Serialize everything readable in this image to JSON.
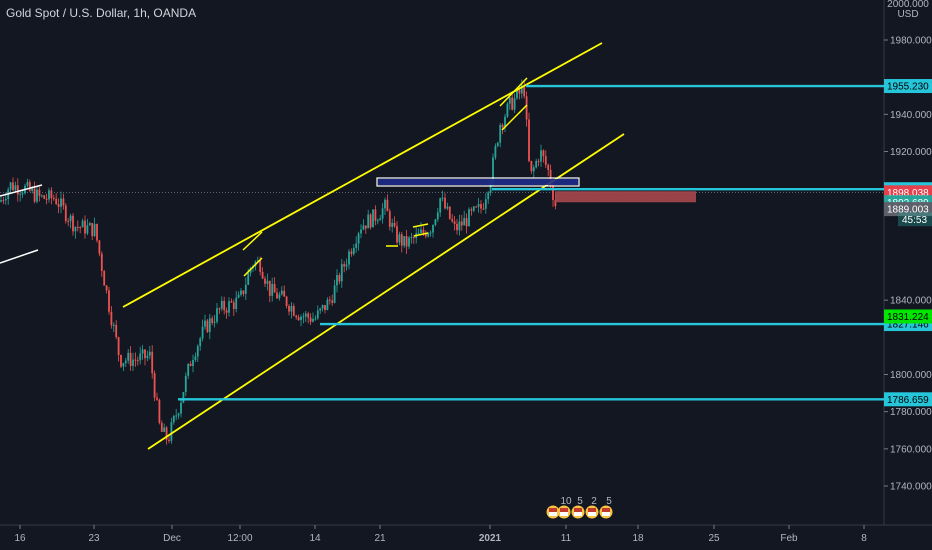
{
  "title": "Gold Spot / U.S. Dollar, 1h, OANDA",
  "chart_data": {
    "type": "candlestick",
    "title": "Gold Spot / U.S. Dollar, 1h, OANDA",
    "currency": "USD",
    "ylim": [
      1714,
      2000
    ],
    "y_ticks": [
      1740,
      1760,
      1780,
      1800,
      1840,
      1920,
      1940,
      1980
    ],
    "x_ticks": [
      "16",
      "23",
      "Dec",
      "12:00",
      "14",
      "21",
      "2021",
      "11",
      "18",
      "25",
      "Feb",
      "8"
    ],
    "price_levels": [
      {
        "value": 1955.23,
        "label": "1955.230",
        "color": "#26c6da"
      },
      {
        "value": 1899.705,
        "label": "1899.705",
        "color": "#26c6da"
      },
      {
        "value": 1827.146,
        "label": "1827.146",
        "color": "#26c6da"
      },
      {
        "value": 1786.659,
        "label": "1786.659",
        "color": "#26c6da"
      }
    ],
    "price_tags": [
      {
        "value": 1898.038,
        "label": "1898.038",
        "bg": "#e5404b",
        "fg": "#ffffff"
      },
      {
        "value": 1892.689,
        "label": "1892.689",
        "bg": "#26a69a",
        "fg": "#ffffff"
      },
      {
        "value": 1889.003,
        "label": "1889.003",
        "bg": "#5d606b",
        "fg": "#ffffff"
      },
      {
        "value": 1831.224,
        "label": "1831.224",
        "bg": "#00e600",
        "fg": "#000000"
      }
    ],
    "countdown": "45:53",
    "events": [
      "10",
      "5",
      "2",
      "5"
    ],
    "drawings": {
      "channel_color": "#ffff00",
      "sell_zone_color": "#ffffff",
      "stop_zone_color": "#b24a4f",
      "target_zone_color": "#2a6b33"
    },
    "candle_colors": {
      "up": "#26a69a",
      "down": "#ef5350"
    }
  }
}
